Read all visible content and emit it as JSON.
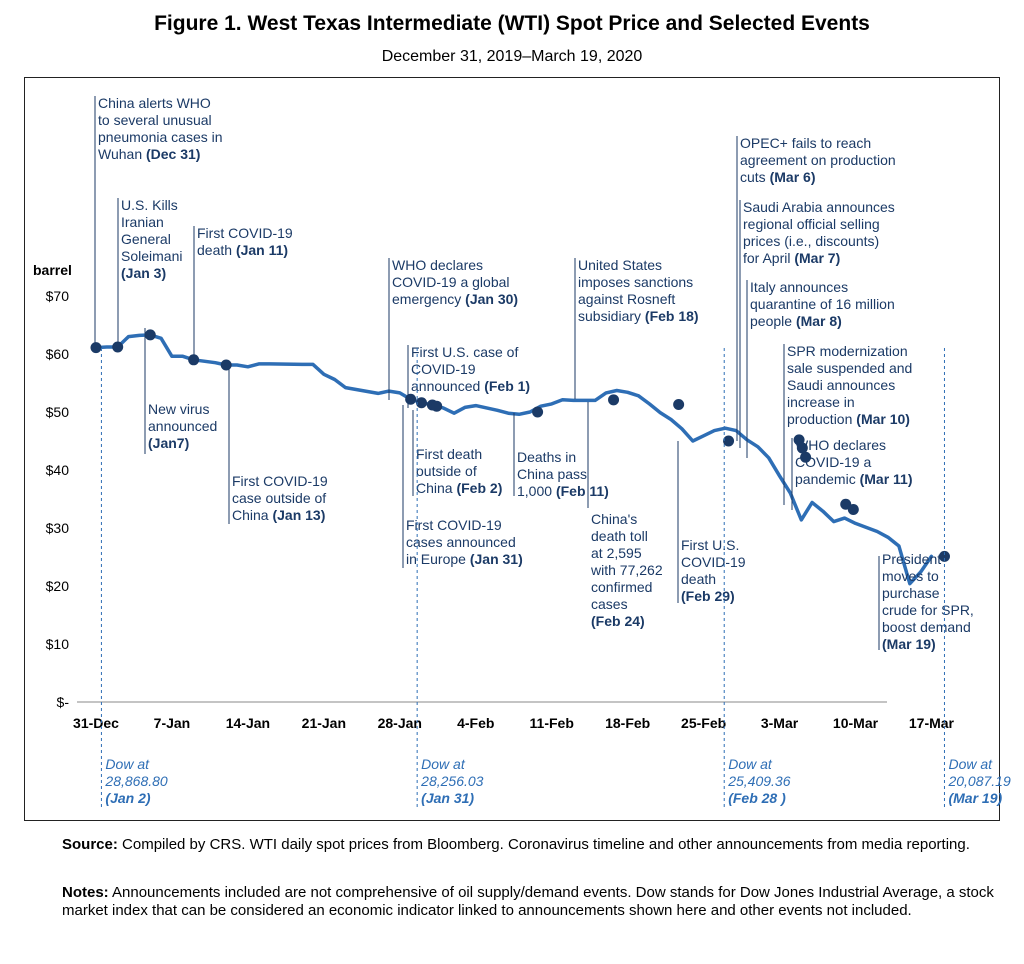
{
  "header": {
    "title": "Figure 1. West Texas Intermediate (WTI) Spot Price and Selected Events",
    "subtitle": "December 31, 2019–March 19, 2020"
  },
  "footer": {
    "source_label": "Source:",
    "source_text": "Compiled by CRS. WTI daily spot prices from Bloomberg. Coronavirus timeline and other announcements from media reporting.",
    "notes_label": "Notes:",
    "notes_text": "Announcements included are not comprehensive of oil supply/demand events. Dow stands for Dow Jones Industrial Average, a stock market index that can be considered an economic indicator linked to announcements shown here and other events not included."
  },
  "chart_data": {
    "type": "line",
    "ylabel": "barrel",
    "ylim": [
      0,
      70
    ],
    "yticks": [
      {
        "value": 70,
        "label": "$70"
      },
      {
        "value": 60,
        "label": "$60"
      },
      {
        "value": 50,
        "label": "$50"
      },
      {
        "value": 40,
        "label": "$40"
      },
      {
        "value": 30,
        "label": "$30"
      },
      {
        "value": 20,
        "label": "$20"
      },
      {
        "value": 10,
        "label": "$10"
      },
      {
        "value": 0,
        "label": "$-"
      }
    ],
    "xticks": [
      {
        "day": 0,
        "label": "31-Dec"
      },
      {
        "day": 7,
        "label": "7-Jan"
      },
      {
        "day": 14,
        "label": "14-Jan"
      },
      {
        "day": 21,
        "label": "21-Jan"
      },
      {
        "day": 28,
        "label": "28-Jan"
      },
      {
        "day": 35,
        "label": "4-Feb"
      },
      {
        "day": 42,
        "label": "11-Feb"
      },
      {
        "day": 49,
        "label": "18-Feb"
      },
      {
        "day": 56,
        "label": "25-Feb"
      },
      {
        "day": 63,
        "label": "3-Mar"
      },
      {
        "day": 70,
        "label": "10-Mar"
      },
      {
        "day": 77,
        "label": "17-Mar"
      }
    ],
    "grid": false,
    "line_color": "#2e6eb5",
    "series": [
      {
        "points": [
          [
            0,
            61.1
          ],
          [
            1,
            61.2
          ],
          [
            2,
            61.2
          ],
          [
            3,
            63.0
          ],
          [
            4,
            63.2
          ],
          [
            5,
            63.3
          ],
          [
            6,
            62.7
          ],
          [
            7,
            59.6
          ],
          [
            8,
            59.6
          ],
          [
            9,
            59.0
          ],
          [
            11,
            58.5
          ],
          [
            12,
            58.1
          ],
          [
            13,
            58.1
          ],
          [
            14,
            57.8
          ],
          [
            15,
            58.3
          ],
          [
            16,
            58.3
          ],
          [
            19,
            58.2
          ],
          [
            20,
            58.2
          ],
          [
            21,
            56.5
          ],
          [
            22,
            55.6
          ],
          [
            23,
            54.2
          ],
          [
            26,
            53.2
          ],
          [
            27,
            53.6
          ],
          [
            28,
            53.3
          ],
          [
            29,
            52.2
          ],
          [
            30,
            51.6
          ],
          [
            31,
            51.2
          ],
          [
            32,
            50.7
          ],
          [
            33,
            49.8
          ],
          [
            34,
            50.8
          ],
          [
            35,
            51.1
          ],
          [
            36,
            50.7
          ],
          [
            37,
            50.3
          ],
          [
            38,
            49.8
          ],
          [
            39,
            49.6
          ],
          [
            40,
            50.0
          ],
          [
            41,
            51.0
          ],
          [
            42,
            51.4
          ],
          [
            43,
            52.1
          ],
          [
            44,
            52.0
          ],
          [
            45,
            52.0
          ],
          [
            46,
            52.0
          ],
          [
            47,
            53.3
          ],
          [
            48,
            53.7
          ],
          [
            49,
            53.4
          ],
          [
            50,
            52.8
          ],
          [
            51,
            51.4
          ],
          [
            52,
            49.9
          ],
          [
            53,
            48.7
          ],
          [
            54,
            47.1
          ],
          [
            55,
            45.0
          ],
          [
            56,
            45.9
          ],
          [
            57,
            46.8
          ],
          [
            58,
            47.2
          ],
          [
            59,
            46.8
          ],
          [
            60,
            45.2
          ],
          [
            61,
            44.0
          ],
          [
            62,
            42.1
          ],
          [
            63,
            39.0
          ],
          [
            64,
            36.0
          ],
          [
            65,
            31.4
          ],
          [
            66,
            34.4
          ],
          [
            67,
            32.9
          ],
          [
            68,
            31.1
          ],
          [
            69,
            31.7
          ],
          [
            70,
            30.8
          ],
          [
            72,
            29.4
          ],
          [
            73,
            28.4
          ],
          [
            74,
            26.9
          ],
          [
            75,
            20.4
          ],
          [
            76,
            22.4
          ],
          [
            77,
            25.1
          ]
        ]
      }
    ],
    "events": [
      {
        "day": 0,
        "price": 61.1,
        "lines": [
          "China alerts WHO",
          "to several unusual",
          "pneumonia cases in"
        ],
        "last_plain": "Wuhan ",
        "date": "(Dec 31)"
      },
      {
        "day": 2,
        "price": 61.2,
        "lines": [
          "U.S. Kills",
          "Iranian",
          "General",
          "Soleimani"
        ],
        "last_plain": "",
        "date": "(Jan 3)"
      },
      {
        "day": 5,
        "price": 63.3,
        "lines": [
          "New virus",
          "announced"
        ],
        "last_plain": "",
        "date": "(Jan7)"
      },
      {
        "day": 9,
        "price": 59.0,
        "lines": [
          "First COVID-19"
        ],
        "last_plain": "death ",
        "date": "(Jan 11)"
      },
      {
        "day": 12,
        "price": 58.1,
        "lines": [
          "First COVID-19",
          "case outside of"
        ],
        "last_plain": "China ",
        "date": "(Jan 13)"
      },
      {
        "day": 29,
        "price": 52.2,
        "lines": [
          "WHO declares",
          "COVID-19 a global"
        ],
        "last_plain": "emergency ",
        "date": "(Jan 30)"
      },
      {
        "day": 30,
        "price": 51.6,
        "lines": [
          "First COVID-19",
          "cases announced"
        ],
        "last_plain": "in Europe ",
        "date": "(Jan 31)"
      },
      {
        "day": 31,
        "price": 51.2,
        "lines": [
          "First U.S. case of",
          "COVID-19"
        ],
        "last_plain": "announced ",
        "date": "(Feb 1)"
      },
      {
        "day": 31.4,
        "price": 51.0,
        "lines": [
          "First death",
          "outside of"
        ],
        "last_plain": "China ",
        "date": "(Feb 2)"
      },
      {
        "day": 40.7,
        "price": 50.0,
        "lines": [
          "Deaths in",
          "China pass"
        ],
        "last_plain": "1,000 ",
        "date": "(Feb 11)"
      },
      {
        "day": 47.7,
        "price": 52.1,
        "lines": [
          "United States",
          "imposes sanctions",
          "against Rosneft"
        ],
        "last_plain": "subsidiary ",
        "date": "(Feb 18)"
      },
      {
        "day": 53.7,
        "price": 51.3,
        "lines": [
          "China's",
          "death toll",
          "at 2,595",
          "with 77,262",
          "confirmed",
          "cases"
        ],
        "last_plain": "",
        "date": "(Feb 24)"
      },
      {
        "day": 58.3,
        "price": 45.0,
        "lines": [
          "First U.S.",
          "COVID-19",
          "death"
        ],
        "last_plain": "",
        "date": "(Feb 29)"
      },
      {
        "day": 64.8,
        "price": 45.2,
        "lines": [
          "OPEC+ fails to reach",
          "agreement on production"
        ],
        "last_plain": "cuts ",
        "date": "(Mar 6)"
      },
      {
        "day": 65.1,
        "price": 43.8,
        "lines": [
          "Saudi Arabia announces",
          "regional official selling",
          "prices (i.e., discounts)"
        ],
        "last_plain": "for April ",
        "date": "(Mar 7)"
      },
      {
        "day": 65.4,
        "price": 42.2,
        "lines": [
          "Italy announces",
          "quarantine of 16 million"
        ],
        "last_plain": "people ",
        "date": "(Mar 8)"
      },
      {
        "day": 69.1,
        "price": 34.1,
        "lines": [
          "SPR modernization",
          "sale suspended and",
          "Saudi announces",
          "increase in"
        ],
        "last_plain": "production ",
        "date": "(Mar 10)"
      },
      {
        "day": 69.8,
        "price": 33.2,
        "lines": [
          "WHO declares",
          "COVID-19 a"
        ],
        "last_plain": "pandemic ",
        "date": "(Mar 11)"
      },
      {
        "day": 78.2,
        "price": 25.1,
        "lines": [
          "President",
          "moves to",
          "purchase",
          "crude for SPR,",
          "boost demand"
        ],
        "last_plain": "",
        "date": "(Mar 19)"
      }
    ],
    "dow": [
      {
        "day": 0.5,
        "lines": [
          "Dow at",
          "28,868.80"
        ],
        "date": "(Jan 2)"
      },
      {
        "day": 29.6,
        "lines": [
          "Dow at",
          "28,256.03"
        ],
        "date": "(Jan 31)"
      },
      {
        "day": 57.9,
        "lines": [
          "Dow at",
          "25,409.36"
        ],
        "date": "(Feb 28 )"
      },
      {
        "day": 78.2,
        "lines": [
          "Dow at",
          "20,087.19"
        ],
        "date": "(Mar 19)"
      }
    ]
  }
}
